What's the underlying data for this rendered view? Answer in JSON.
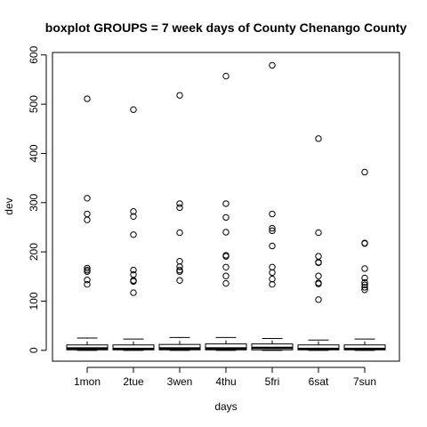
{
  "chart_data": {
    "type": "boxplot",
    "title": "boxplot GROUPS = 7 week days of County Chenango County",
    "xlabel": "days",
    "ylabel": "dev",
    "ylim": [
      -22,
      605
    ],
    "yticks": [
      0,
      100,
      200,
      300,
      400,
      500,
      600
    ],
    "grid": false,
    "legend": "none",
    "box_color": "#000000",
    "categories": [
      "1mon",
      "2tue",
      "3wen",
      "4thu",
      "5fri",
      "6sat",
      "7sun"
    ],
    "boxes": [
      {
        "min": 0,
        "q1": 1,
        "median": 4,
        "q3": 11,
        "max": 25,
        "outliers": [
          511,
          309,
          277,
          265,
          167,
          163,
          160,
          143,
          134
        ]
      },
      {
        "min": 0,
        "q1": 1,
        "median": 3,
        "q3": 11,
        "max": 23,
        "outliers": [
          489,
          282,
          272,
          235,
          163,
          154,
          142,
          140,
          117
        ]
      },
      {
        "min": 0,
        "q1": 1,
        "median": 4,
        "q3": 12,
        "max": 26,
        "outliers": [
          518,
          298,
          290,
          239,
          181,
          170,
          163,
          160,
          142
        ]
      },
      {
        "min": 0,
        "q1": 1,
        "median": 4,
        "q3": 13,
        "max": 26,
        "outliers": [
          557,
          298,
          270,
          240,
          193,
          191,
          169,
          151,
          136
        ]
      },
      {
        "min": 0,
        "q1": 1,
        "median": 5,
        "q3": 13,
        "max": 24,
        "outliers": [
          579,
          277,
          248,
          243,
          212,
          169,
          158,
          145,
          134
        ]
      },
      {
        "min": 0,
        "q1": 1,
        "median": 3,
        "q3": 11,
        "max": 21,
        "outliers": [
          430,
          239,
          191,
          179,
          178,
          151,
          137,
          135,
          103
        ]
      },
      {
        "min": 0,
        "q1": 1,
        "median": 3,
        "q3": 11,
        "max": 23,
        "outliers": [
          362,
          218,
          217,
          166,
          147,
          138,
          133,
          128,
          123
        ]
      }
    ]
  }
}
